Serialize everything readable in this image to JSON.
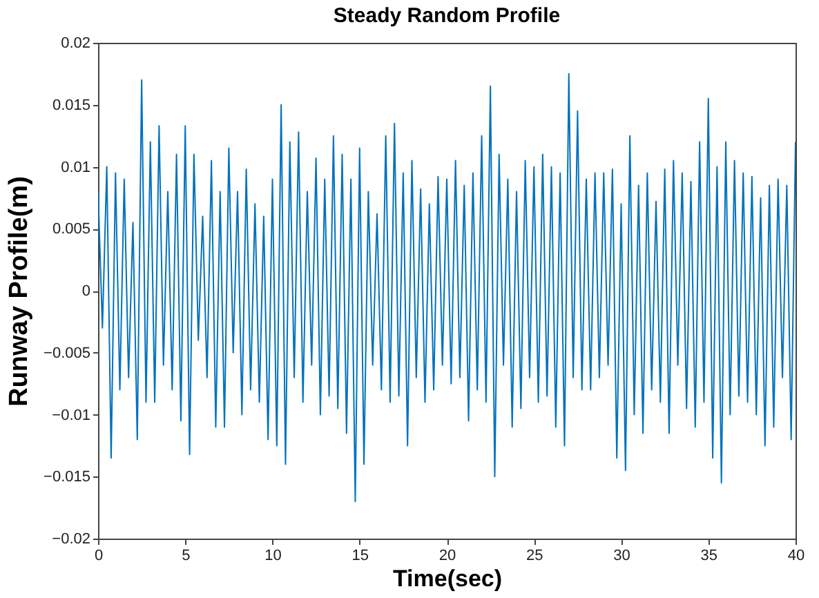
{
  "chart_data": {
    "type": "line",
    "title": "Steady Random Profile",
    "xlabel": "Time(sec)",
    "ylabel": "Runway Profile(m)",
    "x": [
      0,
      0.25,
      0.5,
      0.75,
      1,
      1.25,
      1.5,
      1.75,
      2,
      2.25,
      2.5,
      2.75,
      3,
      3.25,
      3.5,
      3.75,
      4,
      4.25,
      4.5,
      4.75,
      5,
      5.25,
      5.5,
      5.75,
      6,
      6.25,
      6.5,
      6.75,
      7,
      7.25,
      7.5,
      7.75,
      8,
      8.25,
      8.5,
      8.75,
      9,
      9.25,
      9.5,
      9.75,
      10,
      10.25,
      10.5,
      10.75,
      11,
      11.25,
      11.5,
      11.75,
      12,
      12.25,
      12.5,
      12.75,
      13,
      13.25,
      13.5,
      13.75,
      14,
      14.25,
      14.5,
      14.75,
      15,
      15.25,
      15.5,
      15.75,
      16,
      16.25,
      16.5,
      16.75,
      17,
      17.25,
      17.5,
      17.75,
      18,
      18.25,
      18.5,
      18.75,
      19,
      19.25,
      19.5,
      19.75,
      20,
      20.25,
      20.5,
      20.75,
      21,
      21.25,
      21.5,
      21.75,
      22,
      22.25,
      22.5,
      22.75,
      23,
      23.25,
      23.5,
      23.75,
      24,
      24.25,
      24.5,
      24.75,
      25,
      25.25,
      25.5,
      25.75,
      26,
      26.25,
      26.5,
      26.75,
      27,
      27.25,
      27.5,
      27.75,
      28,
      28.25,
      28.5,
      28.75,
      29,
      29.25,
      29.5,
      29.75,
      30,
      30.25,
      30.5,
      30.75,
      31,
      31.25,
      31.5,
      31.75,
      32,
      32.25,
      32.5,
      32.75,
      33,
      33.25,
      33.5,
      33.75,
      34,
      34.25,
      34.5,
      34.75,
      35,
      35.25,
      35.5,
      35.75,
      36,
      36.25,
      36.5,
      36.75,
      37,
      37.25,
      37.5,
      37.75,
      38,
      38.25,
      38.5,
      38.75,
      39,
      39.25,
      39.5,
      39.75,
      40
    ],
    "series": [
      {
        "color": "#0072bd",
        "values": [
          0.008,
          -0.003,
          0.01,
          -0.0135,
          0.0095,
          -0.008,
          0.009,
          -0.007,
          0.0055,
          -0.012,
          0.017,
          -0.009,
          0.012,
          -0.009,
          0.0133,
          -0.006,
          0.008,
          -0.008,
          0.011,
          -0.0105,
          0.0133,
          -0.0132,
          0.011,
          -0.004,
          0.006,
          -0.007,
          0.0105,
          -0.011,
          0.008,
          -0.011,
          0.0115,
          -0.005,
          0.008,
          -0.01,
          0.0098,
          -0.008,
          0.007,
          -0.009,
          0.006,
          -0.012,
          0.009,
          -0.0125,
          0.015,
          -0.014,
          0.012,
          -0.007,
          0.0128,
          -0.009,
          0.008,
          -0.006,
          0.0107,
          -0.01,
          0.009,
          -0.0085,
          0.0125,
          -0.0095,
          0.011,
          -0.0115,
          0.009,
          -0.017,
          0.0115,
          -0.014,
          0.008,
          -0.006,
          0.0062,
          -0.008,
          0.0125,
          -0.009,
          0.0135,
          -0.0085,
          0.0095,
          -0.0125,
          0.0105,
          -0.007,
          0.0082,
          -0.009,
          0.007,
          -0.008,
          0.0092,
          -0.006,
          0.009,
          -0.0075,
          0.0105,
          -0.007,
          0.0085,
          -0.0105,
          0.0095,
          -0.008,
          0.0125,
          -0.009,
          0.0165,
          -0.015,
          0.011,
          -0.006,
          0.009,
          -0.011,
          0.008,
          -0.0095,
          0.0105,
          -0.007,
          0.01,
          -0.009,
          0.011,
          -0.0085,
          0.01,
          -0.011,
          0.0095,
          -0.0125,
          0.0175,
          -0.007,
          0.0145,
          -0.008,
          0.009,
          -0.008,
          0.0095,
          -0.007,
          0.0095,
          -0.006,
          0.0098,
          -0.0135,
          0.007,
          -0.0145,
          0.0125,
          -0.01,
          0.0085,
          -0.0115,
          0.0095,
          -0.008,
          0.0072,
          -0.009,
          0.0098,
          -0.0115,
          0.0105,
          -0.006,
          0.0095,
          -0.0095,
          0.0088,
          -0.011,
          0.012,
          -0.009,
          0.0155,
          -0.0135,
          0.01,
          -0.0155,
          0.012,
          -0.01,
          0.0105,
          -0.0085,
          0.0095,
          -0.009,
          0.0092,
          -0.01,
          0.0075,
          -0.0125,
          0.0085,
          -0.011,
          0.009,
          -0.007,
          0.0085,
          -0.012,
          0.012
        ]
      }
    ],
    "xlim": [
      0,
      40
    ],
    "xticks": [
      0,
      5,
      10,
      15,
      20,
      25,
      30,
      35,
      40
    ],
    "ylim": [
      -0.02,
      0.02
    ],
    "yticks": [
      -0.02,
      -0.015,
      -0.01,
      -0.005,
      0,
      0.005,
      0.01,
      0.015,
      0.02
    ]
  }
}
